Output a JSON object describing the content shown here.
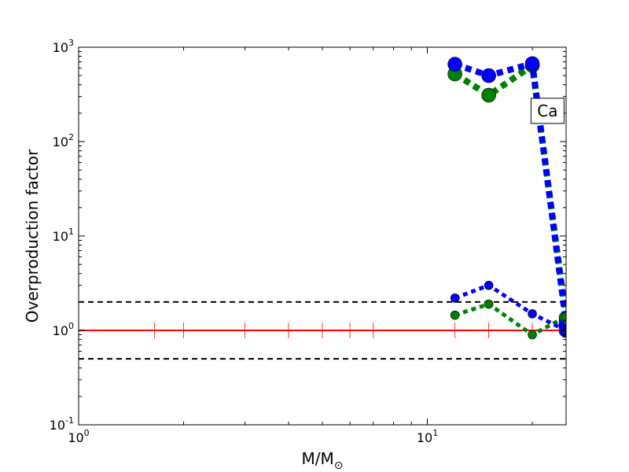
{
  "chart_data": {
    "type": "line",
    "xscale": "log",
    "yscale": "log",
    "xlim": [
      1,
      25
    ],
    "ylim": [
      0.1,
      1000
    ],
    "xlabel_main": "M/M",
    "xlabel_sub": "⊙",
    "ylabel": "Overproduction factor",
    "x_ticks": [
      {
        "base": "10",
        "exp": "0",
        "value": 1
      },
      {
        "base": "10",
        "exp": "1",
        "value": 10
      }
    ],
    "y_ticks": [
      {
        "base": "10",
        "exp": "-1",
        "value": 0.1
      },
      {
        "base": "10",
        "exp": "0",
        "value": 1
      },
      {
        "base": "10",
        "exp": "1",
        "value": 10
      },
      {
        "base": "10",
        "exp": "2",
        "value": 100
      },
      {
        "base": "10",
        "exp": "3",
        "value": 1000
      }
    ],
    "annotation": {
      "text": "Ca",
      "x": 22,
      "y": 220
    },
    "reference_lines": [
      {
        "y": 2.0,
        "style": "dashed",
        "color": "#000000"
      },
      {
        "y": 1.0,
        "style": "dashed",
        "color": "#000000"
      },
      {
        "y": 0.5,
        "style": "dashed",
        "color": "#000000"
      }
    ],
    "baseline": {
      "y": 1.0,
      "color": "#ff0000",
      "tick_x": [
        1.65,
        2,
        3,
        4,
        5,
        6,
        7,
        12,
        15,
        20,
        25
      ]
    },
    "series": [
      {
        "color": "#008000",
        "marker_size": "large",
        "x": [
          12,
          15,
          20,
          25,
          25
        ],
        "y": [
          520,
          310,
          640,
          1.35,
          1.1
        ]
      },
      {
        "color": "#0000ff",
        "marker_size": "large",
        "x": [
          12,
          15,
          20,
          25,
          25
        ],
        "y": [
          660,
          500,
          670,
          1.2,
          1.0
        ]
      },
      {
        "color": "#008000",
        "marker_size": "small",
        "x": [
          12,
          15,
          20,
          25,
          25
        ],
        "y": [
          1.45,
          1.9,
          0.9,
          1.4,
          1.0
        ]
      },
      {
        "color": "#0000ff",
        "marker_size": "small",
        "x": [
          12,
          15,
          20,
          25,
          25
        ],
        "y": [
          2.2,
          3.0,
          1.5,
          1.0,
          0.95
        ]
      }
    ]
  }
}
